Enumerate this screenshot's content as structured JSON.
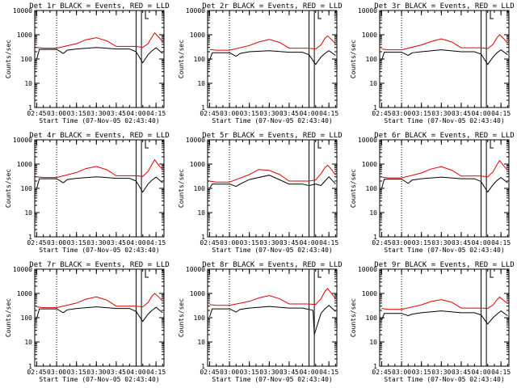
{
  "chart_data": [
    {
      "type": "line",
      "title": "Det 1r BLACK = Events, RED = LLD",
      "xlabel": "Start Time (07-Nov-05 02:43:40)",
      "ylabel": "Counts/sec",
      "x_ticks": [
        "02:45",
        "03:00",
        "03:15",
        "03:30",
        "03:45",
        "04:00",
        "04:15"
      ],
      "y_ticks": [
        "1",
        "10",
        "100",
        "1000",
        "10000"
      ],
      "ylim": [
        1,
        10000
      ],
      "yscale": "log",
      "markers": {
        "dotted": [
          "03:00"
        ],
        "solid": [
          "04:00",
          "04:04"
        ],
        "bracket": [
          "04:07"
        ]
      },
      "series": [
        {
          "name": "Events",
          "color": "#000000",
          "x": [
            "02:45",
            "02:47",
            "02:50",
            "03:00",
            "03:05",
            "03:08",
            "03:15",
            "03:30",
            "03:45",
            "03:50",
            "03:55",
            "04:00",
            "04:05",
            "04:09",
            "04:12",
            "04:15",
            "04:20"
          ],
          "values": [
            100,
            250,
            250,
            250,
            170,
            230,
            260,
            300,
            260,
            260,
            260,
            200,
            70,
            150,
            220,
            290,
            170
          ]
        },
        {
          "name": "LLD",
          "color": "#e00000",
          "x": [
            "02:45",
            "02:50",
            "03:00",
            "03:15",
            "03:22",
            "03:30",
            "03:38",
            "03:45",
            "04:00",
            "04:05",
            "04:09",
            "04:12",
            "04:14",
            "04:17",
            "04:20"
          ],
          "values": [
            300,
            280,
            280,
            430,
            620,
            760,
            560,
            330,
            330,
            300,
            430,
            820,
            1200,
            800,
            520
          ]
        }
      ]
    },
    {
      "type": "line",
      "title": "Det 2r BLACK = Events, RED = LLD",
      "xlabel": "Start Time (07-Nov-05 02:43:40)",
      "ylabel": "Counts/sec",
      "x_ticks": [
        "02:45",
        "03:00",
        "03:15",
        "03:30",
        "03:45",
        "04:00",
        "04:15"
      ],
      "y_ticks": [
        "1",
        "10",
        "100",
        "1000",
        "10000"
      ],
      "ylim": [
        1,
        10000
      ],
      "yscale": "log",
      "markers": {
        "dotted": [
          "03:00"
        ],
        "solid": [
          "04:00",
          "04:04"
        ],
        "bracket": [
          "04:07"
        ]
      },
      "series": [
        {
          "name": "Events",
          "color": "#000000",
          "x": [
            "02:45",
            "02:47",
            "02:50",
            "03:00",
            "03:05",
            "03:08",
            "03:15",
            "03:30",
            "03:45",
            "03:50",
            "03:55",
            "04:00",
            "04:05",
            "04:09",
            "04:12",
            "04:15",
            "04:20"
          ],
          "values": [
            90,
            180,
            180,
            180,
            130,
            170,
            200,
            220,
            190,
            190,
            190,
            150,
            60,
            120,
            170,
            220,
            140
          ]
        },
        {
          "name": "LLD",
          "color": "#e00000",
          "x": [
            "02:45",
            "02:50",
            "03:00",
            "03:15",
            "03:22",
            "03:30",
            "03:38",
            "03:45",
            "04:00",
            "04:05",
            "04:09",
            "04:12",
            "04:14",
            "04:17",
            "04:20"
          ],
          "values": [
            250,
            230,
            230,
            360,
            500,
            640,
            480,
            280,
            280,
            260,
            380,
            700,
            900,
            640,
            420
          ]
        }
      ]
    },
    {
      "type": "line",
      "title": "Det 3r BLACK = Events, RED = LLD",
      "xlabel": "Start Time (07-Nov-05 02:43:40)",
      "ylabel": "Counts/sec",
      "x_ticks": [
        "02:45",
        "03:00",
        "03:15",
        "03:30",
        "03:45",
        "04:00",
        "04:15"
      ],
      "y_ticks": [
        "1",
        "10",
        "100",
        "1000",
        "10000"
      ],
      "ylim": [
        1,
        10000
      ],
      "yscale": "log",
      "markers": {
        "dotted": [
          "03:00"
        ],
        "solid": [
          "04:00",
          "04:04"
        ],
        "bracket": [
          "04:07"
        ]
      },
      "series": [
        {
          "name": "Events",
          "color": "#000000",
          "x": [
            "02:45",
            "02:47",
            "02:50",
            "03:00",
            "03:05",
            "03:08",
            "03:15",
            "03:30",
            "03:45",
            "03:50",
            "03:55",
            "04:00",
            "04:05",
            "04:09",
            "04:12",
            "04:15",
            "04:20"
          ],
          "values": [
            90,
            190,
            190,
            190,
            140,
            180,
            200,
            240,
            200,
            200,
            200,
            160,
            60,
            120,
            180,
            240,
            150
          ]
        },
        {
          "name": "LLD",
          "color": "#e00000",
          "x": [
            "02:45",
            "02:50",
            "03:00",
            "03:15",
            "03:22",
            "03:30",
            "03:38",
            "03:45",
            "04:00",
            "04:05",
            "04:09",
            "04:12",
            "04:14",
            "04:17",
            "04:20"
          ],
          "values": [
            260,
            240,
            240,
            380,
            520,
            680,
            500,
            290,
            290,
            270,
            400,
            750,
            1000,
            700,
            450
          ]
        }
      ]
    },
    {
      "type": "line",
      "title": "Det 4r BLACK = Events, RED = LLD",
      "xlabel": "Start Time (07-Nov-05 02:43:40)",
      "ylabel": "Counts/sec",
      "x_ticks": [
        "02:45",
        "03:00",
        "03:15",
        "03:30",
        "03:45",
        "04:00",
        "04:15"
      ],
      "y_ticks": [
        "1",
        "10",
        "100",
        "1000",
        "10000"
      ],
      "ylim": [
        1,
        10000
      ],
      "yscale": "log",
      "markers": {
        "dotted": [
          "03:00"
        ],
        "solid": [
          "04:00",
          "04:04"
        ],
        "bracket": [
          "04:07"
        ]
      },
      "series": [
        {
          "name": "Events",
          "color": "#000000",
          "x": [
            "02:45",
            "02:47",
            "02:50",
            "03:00",
            "03:05",
            "03:08",
            "03:15",
            "03:30",
            "03:45",
            "03:50",
            "03:55",
            "04:00",
            "04:05",
            "04:09",
            "04:12",
            "04:15",
            "04:20"
          ],
          "values": [
            100,
            250,
            250,
            250,
            170,
            230,
            260,
            300,
            260,
            260,
            260,
            200,
            70,
            150,
            220,
            290,
            170
          ]
        },
        {
          "name": "LLD",
          "color": "#e00000",
          "x": [
            "02:45",
            "02:50",
            "03:00",
            "03:15",
            "03:22",
            "03:30",
            "03:38",
            "03:45",
            "04:00",
            "04:05",
            "04:09",
            "04:12",
            "04:14",
            "04:17",
            "04:20"
          ],
          "values": [
            300,
            280,
            280,
            450,
            650,
            800,
            580,
            330,
            330,
            310,
            500,
            1000,
            1500,
            900,
            600
          ]
        }
      ]
    },
    {
      "type": "line",
      "title": "Det 5r BLACK = Events, RED = LLD",
      "xlabel": "Start Time (07-Nov-05 02:43:40)",
      "ylabel": "Counts/sec",
      "x_ticks": [
        "02:45",
        "03:00",
        "03:15",
        "03:30",
        "03:45",
        "04:00",
        "04:15"
      ],
      "y_ticks": [
        "1",
        "10",
        "100",
        "1000",
        "10000"
      ],
      "ylim": [
        1,
        10000
      ],
      "yscale": "log",
      "markers": {
        "dotted": [
          "03:00"
        ],
        "solid": [
          "04:00",
          "04:04"
        ],
        "bracket": [
          "04:07"
        ]
      },
      "series": [
        {
          "name": "Events",
          "color": "#000000",
          "x": [
            "02:45",
            "02:47",
            "02:50",
            "03:00",
            "03:05",
            "03:08",
            "03:15",
            "03:30",
            "03:45",
            "03:50",
            "03:55",
            "04:00",
            "04:05",
            "04:09",
            "04:12",
            "04:15",
            "04:20"
          ],
          "values": [
            100,
            150,
            150,
            150,
            120,
            150,
            230,
            350,
            150,
            150,
            150,
            130,
            150,
            130,
            200,
            300,
            150
          ]
        },
        {
          "name": "LLD",
          "color": "#e00000",
          "x": [
            "02:45",
            "02:50",
            "03:00",
            "03:15",
            "03:22",
            "03:30",
            "03:38",
            "03:45",
            "04:00",
            "04:05",
            "04:09",
            "04:12",
            "04:14",
            "04:17",
            "04:20"
          ],
          "values": [
            200,
            180,
            180,
            370,
            600,
            550,
            370,
            200,
            200,
            220,
            400,
            700,
            900,
            600,
            350
          ]
        }
      ]
    },
    {
      "type": "line",
      "title": "Det 6r BLACK = Events, RED = LLD",
      "xlabel": "Start Time (07-Nov-05 02:43:40)",
      "ylabel": "Counts/sec",
      "x_ticks": [
        "02:45",
        "03:00",
        "03:15",
        "03:30",
        "03:45",
        "04:00",
        "04:15"
      ],
      "y_ticks": [
        "1",
        "10",
        "100",
        "1000",
        "10000"
      ],
      "ylim": [
        1,
        10000
      ],
      "yscale": "log",
      "markers": {
        "dotted": [
          "03:00"
        ],
        "solid": [
          "04:00",
          "04:04"
        ],
        "bracket": [
          "04:07"
        ]
      },
      "series": [
        {
          "name": "Events",
          "color": "#000000",
          "x": [
            "02:45",
            "02:47",
            "02:50",
            "03:00",
            "03:05",
            "03:08",
            "03:15",
            "03:30",
            "03:45",
            "03:50",
            "03:55",
            "04:00",
            "04:05",
            "04:09",
            "04:12",
            "04:15",
            "04:20"
          ],
          "values": [
            100,
            240,
            240,
            240,
            160,
            220,
            250,
            290,
            250,
            250,
            250,
            190,
            70,
            140,
            210,
            280,
            170
          ]
        },
        {
          "name": "LLD",
          "color": "#e00000",
          "x": [
            "02:45",
            "02:50",
            "03:00",
            "03:15",
            "03:22",
            "03:30",
            "03:38",
            "03:45",
            "04:00",
            "04:05",
            "04:09",
            "04:12",
            "04:14",
            "04:17",
            "04:20"
          ],
          "values": [
            290,
            270,
            270,
            430,
            620,
            780,
            560,
            320,
            320,
            300,
            480,
            950,
            1400,
            850,
            560
          ]
        }
      ]
    },
    {
      "type": "line",
      "title": "Det 7r BLACK = Events, RED = LLD",
      "xlabel": "Start Time (07-Nov-05 02:43:40)",
      "ylabel": "Counts/sec",
      "x_ticks": [
        "02:45",
        "03:00",
        "03:15",
        "03:30",
        "03:45",
        "04:00",
        "04:15"
      ],
      "y_ticks": [
        "1",
        "10",
        "100",
        "1000",
        "10000"
      ],
      "ylim": [
        1,
        10000
      ],
      "yscale": "log",
      "markers": {
        "dotted": [
          "03:00"
        ],
        "solid": [
          "04:00",
          "04:04"
        ],
        "bracket": [
          "04:07"
        ]
      },
      "series": [
        {
          "name": "Events",
          "color": "#000000",
          "x": [
            "02:45",
            "02:47",
            "02:50",
            "03:00",
            "03:05",
            "03:08",
            "03:15",
            "03:30",
            "03:45",
            "03:50",
            "03:55",
            "04:00",
            "04:05",
            "04:09",
            "04:12",
            "04:15",
            "04:20"
          ],
          "values": [
            95,
            230,
            230,
            230,
            160,
            210,
            240,
            280,
            240,
            240,
            240,
            180,
            70,
            140,
            200,
            270,
            160
          ]
        },
        {
          "name": "LLD",
          "color": "#e00000",
          "x": [
            "02:45",
            "02:50",
            "03:00",
            "03:15",
            "03:22",
            "03:30",
            "03:38",
            "03:45",
            "04:00",
            "04:05",
            "04:09",
            "04:12",
            "04:14",
            "04:17",
            "04:20"
          ],
          "values": [
            280,
            260,
            260,
            400,
            580,
            720,
            530,
            300,
            300,
            280,
            420,
            780,
            1000,
            720,
            480
          ]
        }
      ]
    },
    {
      "type": "line",
      "title": "Det 8r BLACK = Events, RED = LLD",
      "xlabel": "Start Time (07-Nov-05 02:43:40)",
      "ylabel": "Counts/sec",
      "x_ticks": [
        "02:45",
        "03:00",
        "03:15",
        "03:30",
        "03:45",
        "04:00",
        "04:15"
      ],
      "y_ticks": [
        "1",
        "10",
        "100",
        "1000",
        "10000"
      ],
      "ylim": [
        1,
        10000
      ],
      "yscale": "log",
      "markers": {
        "dotted": [
          "03:00"
        ],
        "solid": [
          "04:00",
          "04:04"
        ],
        "bracket": [
          "04:07"
        ]
      },
      "series": [
        {
          "name": "Events",
          "color": "#000000",
          "x": [
            "02:45",
            "02:47",
            "02:50",
            "03:00",
            "03:05",
            "03:08",
            "03:15",
            "03:30",
            "03:45",
            "03:50",
            "03:55",
            "04:00",
            "04:03",
            "04:04",
            "04:09",
            "04:12",
            "04:15",
            "04:20"
          ],
          "values": [
            110,
            230,
            230,
            230,
            170,
            220,
            250,
            290,
            250,
            250,
            250,
            220,
            200,
            20,
            150,
            230,
            320,
            180
          ]
        },
        {
          "name": "LLD",
          "color": "#e00000",
          "x": [
            "02:45",
            "02:50",
            "03:00",
            "03:15",
            "03:22",
            "03:30",
            "03:38",
            "03:45",
            "04:00",
            "04:05",
            "04:09",
            "04:12",
            "04:14",
            "04:17",
            "04:20"
          ],
          "values": [
            350,
            320,
            320,
            470,
            650,
            820,
            600,
            370,
            370,
            350,
            600,
            1200,
            1600,
            1000,
            600
          ]
        }
      ]
    },
    {
      "type": "line",
      "title": "Det 9r BLACK = Events, RED = LLD",
      "xlabel": "Start Time (07-Nov-05 02:43:40)",
      "ylabel": "Counts/sec",
      "x_ticks": [
        "02:45",
        "03:00",
        "03:15",
        "03:30",
        "03:45",
        "04:00",
        "04:15"
      ],
      "y_ticks": [
        "1",
        "10",
        "100",
        "1000",
        "10000"
      ],
      "ylim": [
        1,
        10000
      ],
      "yscale": "log",
      "markers": {
        "dotted": [
          "03:00"
        ],
        "solid": [
          "04:00",
          "04:04"
        ],
        "bracket": [
          "04:07"
        ]
      },
      "series": [
        {
          "name": "Events",
          "color": "#000000",
          "x": [
            "02:45",
            "02:47",
            "02:50",
            "03:00",
            "03:05",
            "03:08",
            "03:15",
            "03:30",
            "03:45",
            "03:50",
            "03:55",
            "04:00",
            "04:05",
            "04:09",
            "04:12",
            "04:15",
            "04:20"
          ],
          "values": [
            80,
            150,
            150,
            150,
            120,
            140,
            160,
            190,
            160,
            160,
            160,
            130,
            55,
            100,
            140,
            190,
            120
          ]
        },
        {
          "name": "LLD",
          "color": "#e00000",
          "x": [
            "02:45",
            "02:50",
            "03:00",
            "03:15",
            "03:22",
            "03:30",
            "03:38",
            "03:45",
            "04:00",
            "04:05",
            "04:09",
            "04:12",
            "04:14",
            "04:17",
            "04:20"
          ],
          "values": [
            240,
            220,
            220,
            340,
            460,
            560,
            430,
            250,
            250,
            240,
            330,
            550,
            700,
            520,
            380
          ]
        }
      ]
    }
  ]
}
